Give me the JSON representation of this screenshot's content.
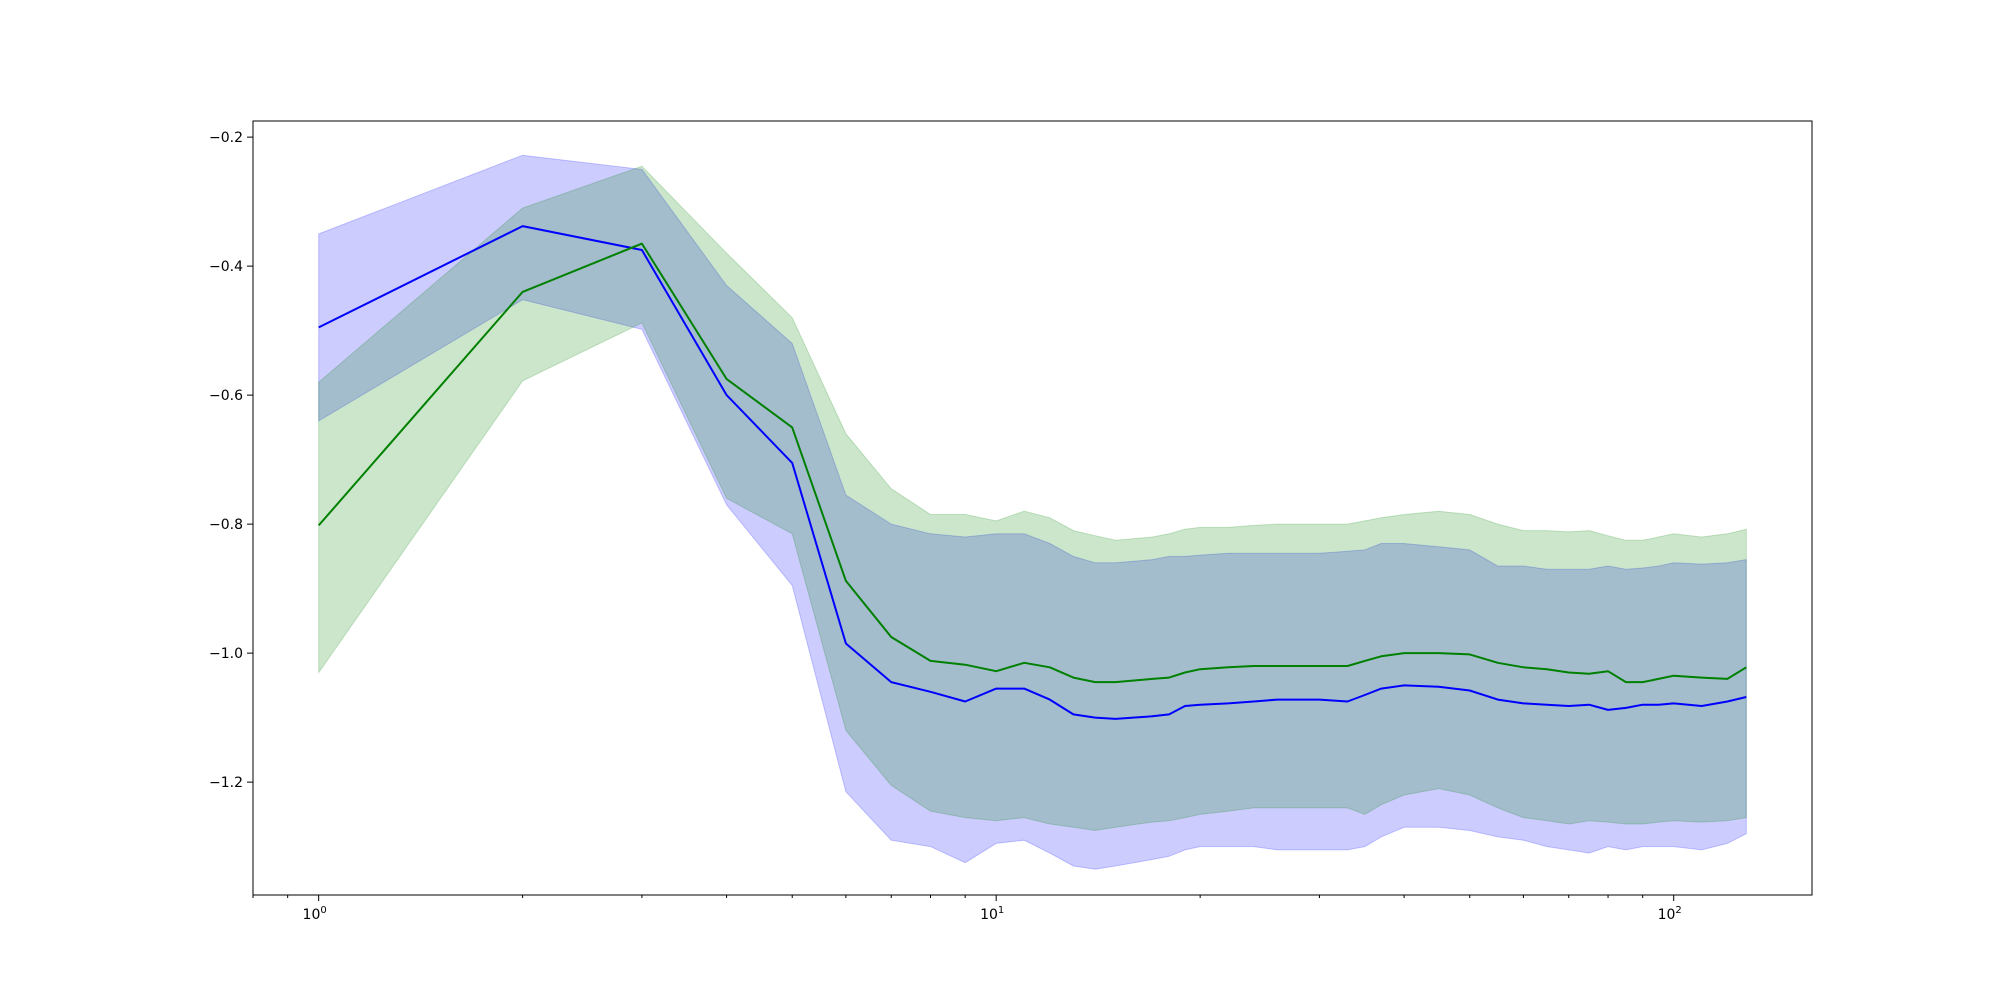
{
  "chart_data": {
    "type": "line",
    "title": "",
    "xlabel": "",
    "ylabel": "",
    "x_scale": "log",
    "xlim": [
      0.8,
      160
    ],
    "ylim": [
      -1.375,
      -0.175
    ],
    "grid": false,
    "x_ticks": [
      {
        "value": 1,
        "base": "10",
        "exp": "0"
      },
      {
        "value": 10,
        "base": "10",
        "exp": "1"
      },
      {
        "value": 100,
        "base": "10",
        "exp": "2"
      }
    ],
    "y_ticks": [
      {
        "value": -0.2,
        "label": "−0.2"
      },
      {
        "value": -0.4,
        "label": "−0.4"
      },
      {
        "value": -0.6,
        "label": "−0.6"
      },
      {
        "value": -0.8,
        "label": "−0.8"
      },
      {
        "value": -1.0,
        "label": "−1.0"
      },
      {
        "value": -1.2,
        "label": "−1.2"
      }
    ],
    "series": [
      {
        "color": "#0000ff",
        "band_color": "#0000ff",
        "band_opacity": 0.2,
        "x": [
          1,
          2,
          3,
          4,
          5,
          6,
          7,
          8,
          9,
          10,
          11,
          12,
          13,
          14,
          15,
          17,
          18,
          19,
          20,
          22,
          24,
          26,
          30,
          33,
          35,
          37,
          40,
          45,
          50,
          55,
          60,
          65,
          70,
          75,
          80,
          85,
          90,
          95,
          100,
          110,
          120,
          128
        ],
        "mean": [
          -0.495,
          -0.338,
          -0.375,
          -0.6,
          -0.705,
          -0.985,
          -1.045,
          -1.06,
          -1.075,
          -1.055,
          -1.055,
          -1.072,
          -1.095,
          -1.1,
          -1.102,
          -1.098,
          -1.095,
          -1.082,
          -1.08,
          -1.078,
          -1.075,
          -1.072,
          -1.072,
          -1.075,
          -1.065,
          -1.055,
          -1.05,
          -1.052,
          -1.058,
          -1.072,
          -1.078,
          -1.08,
          -1.082,
          -1.08,
          -1.088,
          -1.085,
          -1.08,
          -1.08,
          -1.078,
          -1.082,
          -1.075,
          -1.068
        ],
        "lower": [
          -0.64,
          -0.452,
          -0.498,
          -0.77,
          -0.895,
          -1.215,
          -1.29,
          -1.3,
          -1.325,
          -1.295,
          -1.29,
          -1.31,
          -1.33,
          -1.335,
          -1.33,
          -1.32,
          -1.315,
          -1.305,
          -1.3,
          -1.3,
          -1.3,
          -1.305,
          -1.305,
          -1.305,
          -1.3,
          -1.285,
          -1.27,
          -1.27,
          -1.275,
          -1.285,
          -1.29,
          -1.3,
          -1.305,
          -1.31,
          -1.3,
          -1.305,
          -1.3,
          -1.3,
          -1.3,
          -1.305,
          -1.295,
          -1.28
        ],
        "upper": [
          -0.35,
          -0.228,
          -0.25,
          -0.43,
          -0.52,
          -0.755,
          -0.8,
          -0.815,
          -0.82,
          -0.815,
          -0.815,
          -0.83,
          -0.85,
          -0.86,
          -0.86,
          -0.855,
          -0.85,
          -0.85,
          -0.848,
          -0.845,
          -0.845,
          -0.845,
          -0.845,
          -0.842,
          -0.84,
          -0.83,
          -0.83,
          -0.835,
          -0.84,
          -0.865,
          -0.865,
          -0.87,
          -0.87,
          -0.87,
          -0.865,
          -0.87,
          -0.868,
          -0.865,
          -0.86,
          -0.862,
          -0.86,
          -0.855
        ]
      },
      {
        "color": "#008000",
        "band_color": "#008000",
        "band_opacity": 0.2,
        "x": [
          1,
          2,
          3,
          4,
          5,
          6,
          7,
          8,
          9,
          10,
          11,
          12,
          13,
          14,
          15,
          17,
          18,
          19,
          20,
          22,
          24,
          26,
          30,
          33,
          35,
          37,
          40,
          45,
          50,
          55,
          60,
          65,
          70,
          75,
          80,
          85,
          90,
          95,
          100,
          110,
          120,
          128
        ],
        "mean": [
          -0.802,
          -0.44,
          -0.365,
          -0.575,
          -0.65,
          -0.888,
          -0.975,
          -1.012,
          -1.018,
          -1.028,
          -1.015,
          -1.022,
          -1.038,
          -1.045,
          -1.045,
          -1.04,
          -1.038,
          -1.03,
          -1.025,
          -1.022,
          -1.02,
          -1.02,
          -1.02,
          -1.02,
          -1.012,
          -1.005,
          -1.0,
          -1.0,
          -1.002,
          -1.015,
          -1.022,
          -1.025,
          -1.03,
          -1.032,
          -1.028,
          -1.045,
          -1.045,
          -1.04,
          -1.035,
          -1.038,
          -1.04,
          -1.022
        ],
        "lower": [
          -1.03,
          -0.578,
          -0.488,
          -0.76,
          -0.815,
          -1.12,
          -1.205,
          -1.245,
          -1.255,
          -1.26,
          -1.255,
          -1.265,
          -1.27,
          -1.275,
          -1.27,
          -1.262,
          -1.26,
          -1.255,
          -1.25,
          -1.245,
          -1.24,
          -1.24,
          -1.24,
          -1.24,
          -1.25,
          -1.235,
          -1.22,
          -1.21,
          -1.22,
          -1.24,
          -1.255,
          -1.26,
          -1.265,
          -1.26,
          -1.262,
          -1.265,
          -1.265,
          -1.262,
          -1.26,
          -1.262,
          -1.26,
          -1.255
        ],
        "upper": [
          -0.58,
          -0.31,
          -0.245,
          -0.38,
          -0.48,
          -0.66,
          -0.745,
          -0.785,
          -0.785,
          -0.795,
          -0.78,
          -0.79,
          -0.81,
          -0.818,
          -0.825,
          -0.82,
          -0.815,
          -0.808,
          -0.805,
          -0.805,
          -0.802,
          -0.8,
          -0.8,
          -0.8,
          -0.795,
          -0.79,
          -0.785,
          -0.78,
          -0.785,
          -0.8,
          -0.81,
          -0.81,
          -0.812,
          -0.81,
          -0.818,
          -0.825,
          -0.825,
          -0.82,
          -0.815,
          -0.82,
          -0.815,
          -0.808
        ]
      }
    ]
  }
}
